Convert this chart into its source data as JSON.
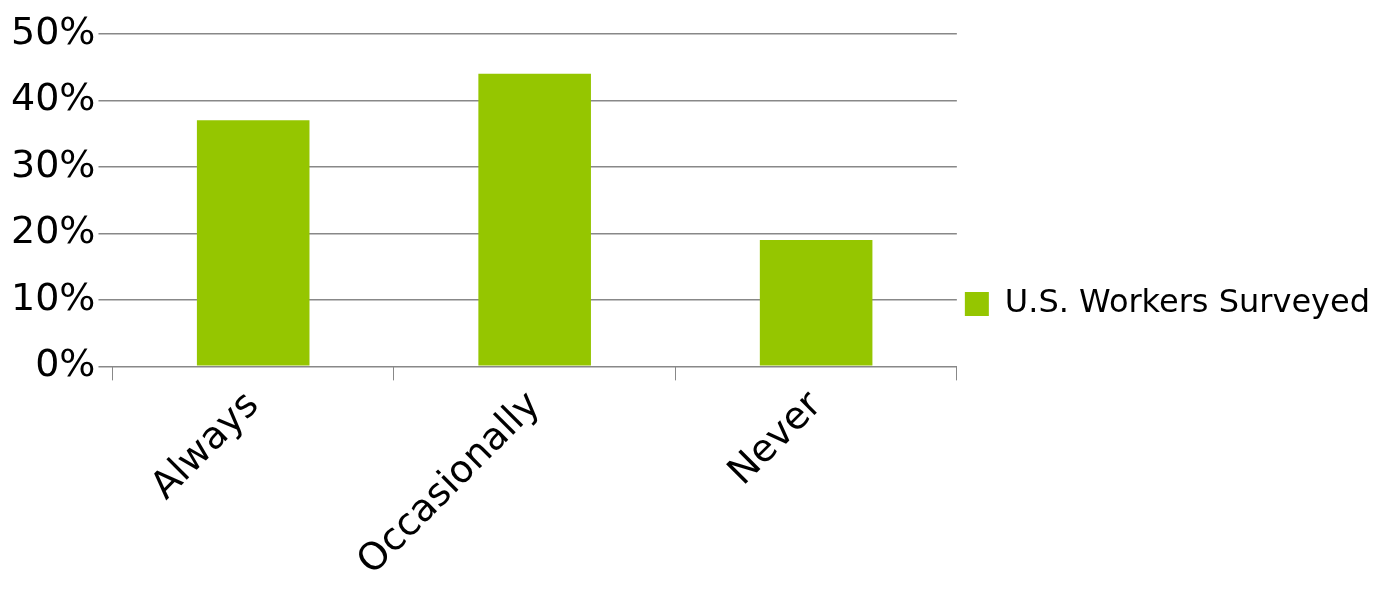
{
  "chart_data": {
    "type": "bar",
    "categories": [
      "Always",
      "Occasionally",
      "Never"
    ],
    "series": [
      {
        "name": "U.S. Workers Surveyed",
        "color": "#95c600",
        "values": [
          37,
          44,
          19
        ]
      }
    ],
    "ylim": [
      0,
      50
    ],
    "yticks": [
      {
        "value": 0,
        "label": "0%"
      },
      {
        "value": 10,
        "label": "10%"
      },
      {
        "value": 20,
        "label": "20%"
      },
      {
        "value": 30,
        "label": "30%"
      },
      {
        "value": 40,
        "label": "40%"
      },
      {
        "value": 50,
        "label": "50%"
      }
    ],
    "grid": "y",
    "legend": "right"
  }
}
